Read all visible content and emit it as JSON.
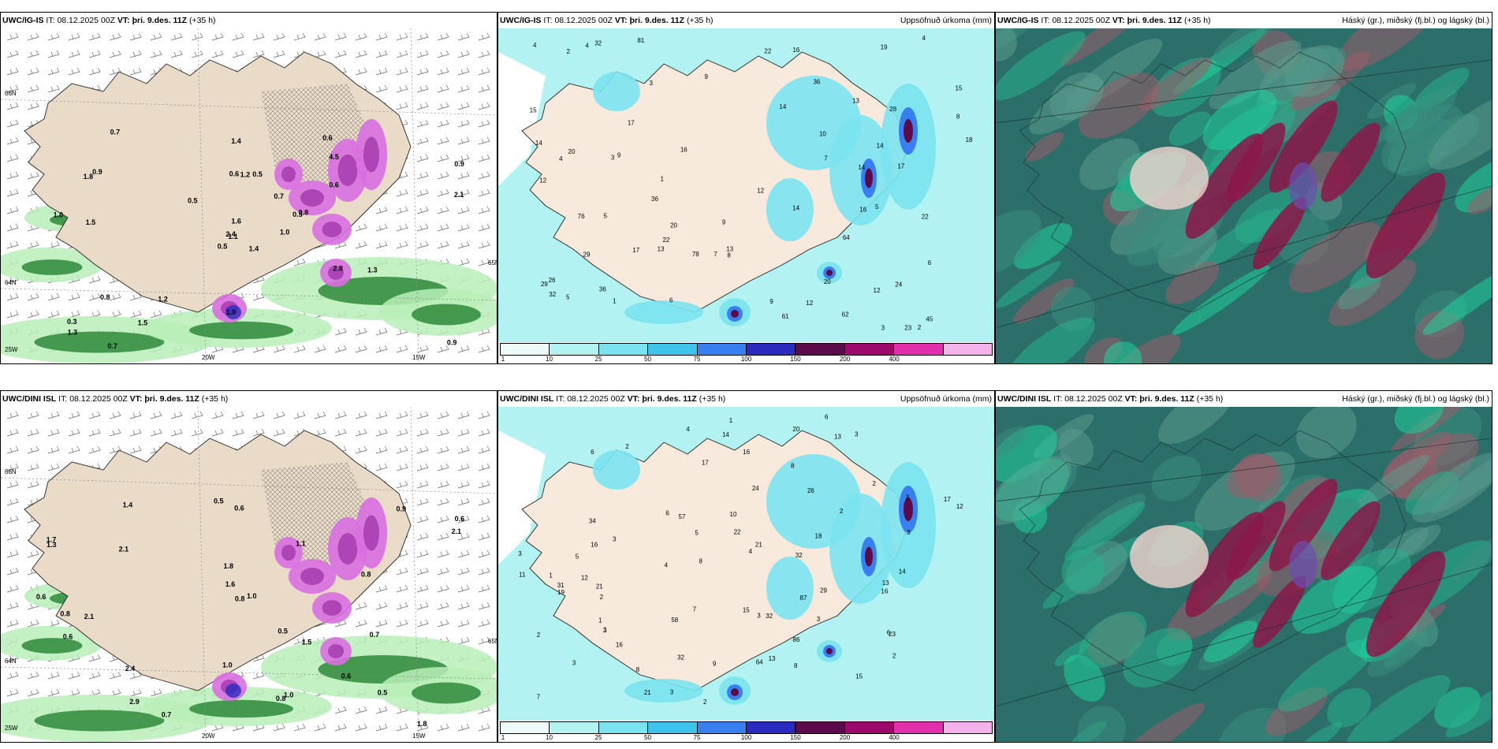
{
  "palette": [
    "#eefafa",
    "#b3f2f2",
    "#7be3ef",
    "#3fc3ea",
    "#3a7ff0",
    "#2b2bbf",
    "#5c0a4a",
    "#9b0a6a",
    "#e22fae",
    "#f2b3ea"
  ],
  "colorbar_ticks": [
    "1",
    "10",
    "25",
    "50",
    "75",
    "100",
    "150",
    "200",
    "400"
  ],
  "rows": [
    {
      "panels": [
        {
          "model": "UWC/IG-IS",
          "it_prefix": "IT:",
          "it": "08.12.2025 00Z",
          "vt_label": "VT:",
          "vt": "þri. 9.des. 11Z",
          "lead": "(+35 h)",
          "right": "",
          "type": "wind",
          "lat_labels": [
            "66N",
            "64N"
          ],
          "lon_labels": [
            "20W",
            "15W"
          ],
          "side_labels": [
            "25W",
            "65N"
          ],
          "values": [
            "1.4",
            "1.8",
            "1.1",
            "0.3",
            "0.5",
            "1.2",
            "0.6",
            "0.5",
            "4.5",
            "1.0",
            "0.7",
            "0.9",
            "1.5",
            "0.9",
            "0.5",
            "0.6",
            "0.7",
            "0.6",
            "0.7",
            "0.8",
            "0.5",
            "1.3",
            "1.5",
            "1.2",
            "0.8",
            "1.3",
            "0.9",
            "1.4",
            "1.0",
            "2.8",
            "2.1",
            "2.4",
            "1.0",
            "1.6"
          ]
        },
        {
          "model": "UWC/IG-IS",
          "it_prefix": "IT:",
          "it": "08.12.2025 00Z",
          "vt_label": "VT:",
          "vt": "þri. 9.des. 11Z",
          "lead": "(+35 h)",
          "right": "Uppsöfnuð úrkoma (mm)",
          "type": "precip",
          "values": [
            "9",
            "3",
            "4",
            "5",
            "2",
            "3",
            "7",
            "36",
            "13",
            "14",
            "17",
            "22",
            "4",
            "3",
            "1",
            "20",
            "12",
            "18",
            "15",
            "16",
            "23",
            "9",
            "12",
            "17",
            "24",
            "7",
            "9",
            "26",
            "28",
            "29",
            "22",
            "78",
            "5",
            "6",
            "13",
            "14",
            "20",
            "32",
            "5",
            "6",
            "12",
            "45",
            "22",
            "62",
            "8",
            "32",
            "13",
            "17",
            "81",
            "36",
            "61",
            "14",
            "14",
            "19",
            "8",
            "10",
            "1",
            "2",
            "29",
            "36",
            "16",
            "9",
            "15",
            "16",
            "12",
            "4",
            "4",
            "14",
            "64",
            "20",
            "76"
          ]
        },
        {
          "model": "UWC/IG-IS",
          "it_prefix": "IT:",
          "it": "08.12.2025 00Z",
          "vt_label": "VT:",
          "vt": "þri. 9.des. 11Z",
          "lead": "(+35 h)",
          "right": "Háský (gr.), miðský (fj.bl.) og lágský (bl.)",
          "type": "cloud"
        }
      ]
    },
    {
      "panels": [
        {
          "model": "UWC/DINI ISL",
          "it_prefix": "IT:",
          "it": "08.12.2025 00Z",
          "vt_label": "VT:",
          "vt": "þri. 9.des. 11Z",
          "lead": "(+35 h)",
          "right": "",
          "type": "wind",
          "lat_labels": [
            "66N",
            "64N"
          ],
          "lon_labels": [
            "20W",
            "15W"
          ],
          "side_labels": [
            "25W",
            "65N"
          ],
          "values": [
            "0.6",
            "0.6",
            "0.8",
            "0.6",
            "1.7",
            "1.8",
            "2.1",
            "1.1",
            "1.8",
            "0.9",
            "1.0",
            "0.7",
            "0.5",
            "1.3",
            "2.1",
            "2.4",
            "1.0",
            "0.8",
            "0.5",
            "1.0",
            "0.6",
            "0.5",
            "2.1",
            "1.6",
            "2.9",
            "0.8",
            "1.5",
            "1.4",
            "0.7",
            "0.8",
            "0.6"
          ]
        },
        {
          "model": "UWC/DINI ISL",
          "it_prefix": "IT:",
          "it": "08.12.2025 00Z",
          "vt_label": "VT:",
          "vt": "þri. 9.des. 11Z",
          "lead": "(+35 h)",
          "right": "Uppsöfnuð úrkoma (mm)",
          "type": "precip",
          "values": [
            "3",
            "3",
            "2",
            "2",
            "3",
            "3",
            "2",
            "1",
            "3",
            "2",
            "1",
            "1",
            "3",
            "4",
            "2",
            "4",
            "2",
            "3",
            "3",
            "3",
            "8",
            "14",
            "17",
            "21",
            "22",
            "32",
            "31",
            "20",
            "24",
            "29",
            "34",
            "16",
            "13",
            "15",
            "23",
            "19",
            "17",
            "32",
            "26",
            "13",
            "12",
            "16",
            "9",
            "21",
            "11",
            "16",
            "87",
            "64",
            "58",
            "86",
            "57",
            "21",
            "10",
            "3",
            "4",
            "32",
            "6",
            "6",
            "6",
            "5",
            "7",
            "6",
            "8",
            "8",
            "7",
            "2",
            "1",
            "18",
            "14",
            "15",
            "16",
            "8",
            "5",
            "12",
            "13"
          ]
        },
        {
          "model": "UWC/DINI ISL",
          "it_prefix": "IT:",
          "it": "08.12.2025 00Z",
          "vt_label": "VT:",
          "vt": "þri. 9.des. 11Z",
          "lead": "(+35 h)",
          "right": "Háský (gr.), miðský (fj.bl.) og lágský (bl.)",
          "type": "cloud"
        }
      ]
    }
  ]
}
